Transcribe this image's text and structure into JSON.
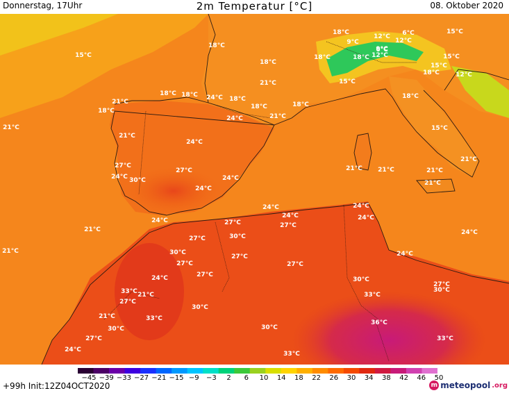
{
  "header": {
    "left": "Donnerstag, 17Uhr",
    "title": "2m Temperatur [°C]",
    "right": "08. Oktober 2020"
  },
  "legend": {
    "ticks": [
      "−45",
      "−39",
      "−33",
      "−27",
      "−21",
      "−15",
      "−9",
      "−3",
      "2",
      "6",
      "10",
      "14",
      "18",
      "22",
      "26",
      "30",
      "34",
      "38",
      "42",
      "46",
      "50"
    ],
    "colors": [
      "#2a0033",
      "#4b0066",
      "#6a00a8",
      "#3d00e0",
      "#1a30ff",
      "#0066ff",
      "#0099ff",
      "#00c4ff",
      "#00e0c8",
      "#00d27a",
      "#3cc93a",
      "#9ad11f",
      "#d8df00",
      "#ffd400",
      "#ffb000",
      "#ff8c00",
      "#ff6a00",
      "#f54a00",
      "#e02810",
      "#d01a40",
      "#c81a78",
      "#d040b0",
      "#e070d0"
    ]
  },
  "footer": {
    "run": "+99h  Init:12Z04OCT2020",
    "brand_main": "meteopool",
    "brand_tld": ".org"
  },
  "labels": [
    {
      "text": "15°C"
    },
    {
      "text": "18°C"
    },
    {
      "text": "18°C"
    },
    {
      "text": "15°C"
    },
    {
      "text": "12°C"
    },
    {
      "text": "6°C"
    },
    {
      "text": "9°C"
    },
    {
      "text": "12°C"
    },
    {
      "text": "9°C"
    },
    {
      "text": "18°C"
    },
    {
      "text": "18°C"
    },
    {
      "text": "6°C"
    },
    {
      "text": "12°C"
    },
    {
      "text": "15°C"
    },
    {
      "text": "15°C"
    },
    {
      "text": "18°C"
    },
    {
      "text": "12°C"
    },
    {
      "text": "18°C"
    },
    {
      "text": "21°C"
    },
    {
      "text": "15°C"
    },
    {
      "text": "18°C"
    },
    {
      "text": "18°C"
    },
    {
      "text": "18°C"
    },
    {
      "text": "21°C"
    },
    {
      "text": "24°C"
    },
    {
      "text": "18°C"
    },
    {
      "text": "18°C"
    },
    {
      "text": "18°C"
    },
    {
      "text": "18°C"
    },
    {
      "text": "21°C"
    },
    {
      "text": "24°C"
    },
    {
      "text": "21°C"
    },
    {
      "text": "24°C"
    },
    {
      "text": "21°C"
    },
    {
      "text": "15°C"
    },
    {
      "text": "27°C"
    },
    {
      "text": "24°C"
    },
    {
      "text": "30°C"
    },
    {
      "text": "27°C"
    },
    {
      "text": "24°C"
    },
    {
      "text": "24°C"
    },
    {
      "text": "21°C"
    },
    {
      "text": "21°C"
    },
    {
      "text": "21°C"
    },
    {
      "text": "21°C"
    },
    {
      "text": "21°C"
    },
    {
      "text": "24°C"
    },
    {
      "text": "24°C"
    },
    {
      "text": "24°C"
    },
    {
      "text": "27°C"
    },
    {
      "text": "24°C"
    },
    {
      "text": "27°C"
    },
    {
      "text": "30°C"
    },
    {
      "text": "24°C"
    },
    {
      "text": "21°C"
    },
    {
      "text": "24°C"
    },
    {
      "text": "27°C"
    },
    {
      "text": "21°C"
    },
    {
      "text": "30°C"
    },
    {
      "text": "27°C"
    },
    {
      "text": "27°C"
    },
    {
      "text": "27°C"
    },
    {
      "text": "24°C"
    },
    {
      "text": "24°C"
    },
    {
      "text": "27°C"
    },
    {
      "text": "33°C"
    },
    {
      "text": "21°C"
    },
    {
      "text": "30°C"
    },
    {
      "text": "27°C"
    },
    {
      "text": "27°C"
    },
    {
      "text": "30°C"
    },
    {
      "text": "30°C"
    },
    {
      "text": "33°C"
    },
    {
      "text": "21°C"
    },
    {
      "text": "33°C"
    },
    {
      "text": "36°C"
    },
    {
      "text": "30°C"
    },
    {
      "text": "27°C"
    },
    {
      "text": "24°C"
    },
    {
      "text": "30°C"
    },
    {
      "text": "33°C"
    },
    {
      "text": "33°C"
    }
  ]
}
